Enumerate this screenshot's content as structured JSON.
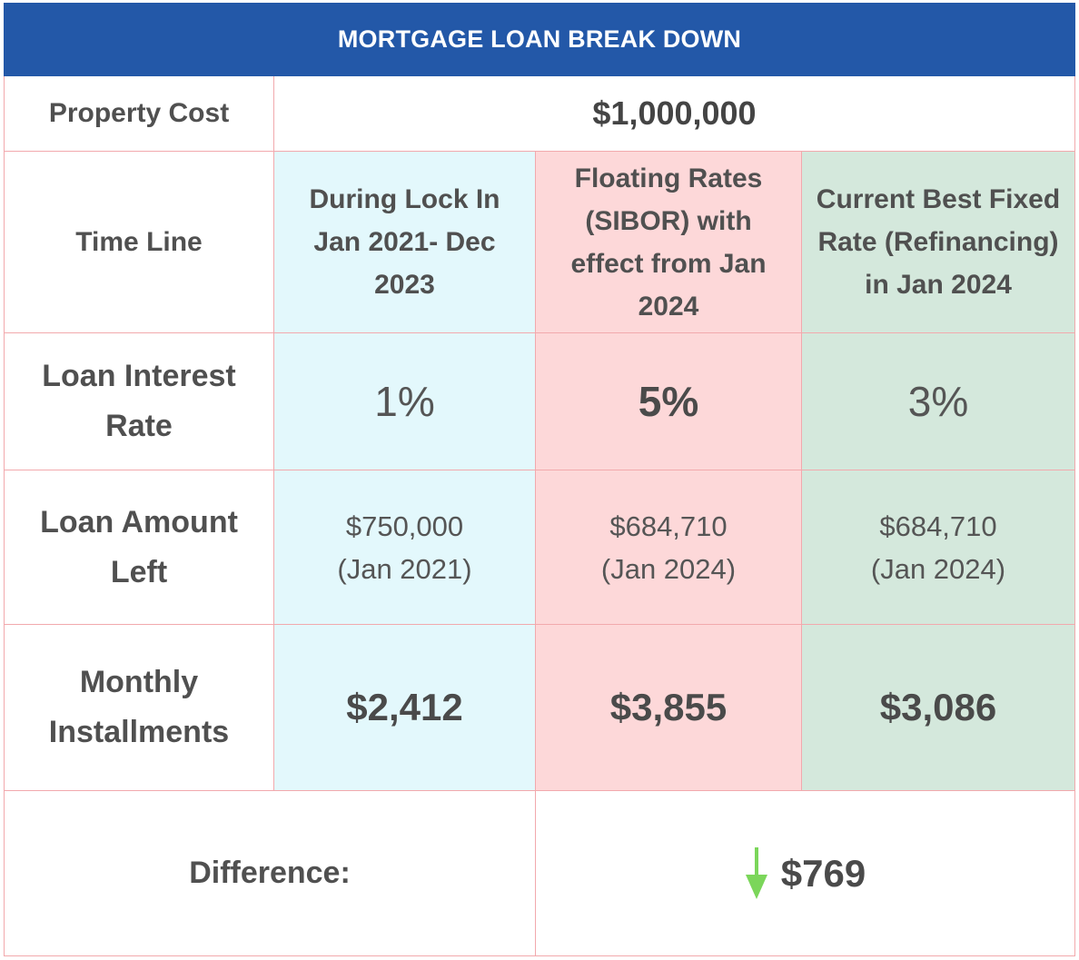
{
  "title": "MORTGAGE LOAN BREAK DOWN",
  "property_cost": {
    "label": "Property Cost",
    "value": "$1,000,000"
  },
  "columns": {
    "row_label": "Time Line",
    "lock_in": "During Lock In Jan 2021- Dec 2023",
    "floating": "Floating Rates (SIBOR) with effect from Jan 2024",
    "fixed": "Current Best Fixed Rate (Refinancing) in Jan 2024"
  },
  "interest_rate": {
    "label": "Loan Interest Rate",
    "lock_in": "1%",
    "floating": "5%",
    "fixed": "3%"
  },
  "loan_amount": {
    "label": "Loan Amount Left",
    "lock_in_amount": "$750,000",
    "lock_in_date": "(Jan 2021)",
    "floating_amount": "$684,710",
    "floating_date": "(Jan 2024)",
    "fixed_amount": "$684,710",
    "fixed_date": "(Jan 2024)"
  },
  "monthly": {
    "label": "Monthly Installments",
    "lock_in": "$2,412",
    "floating": "$3,855",
    "fixed": "$3,086"
  },
  "difference": {
    "label": "Difference:",
    "value": "$769",
    "icon": "arrow-down-icon"
  },
  "colors": {
    "header": "#2358a8",
    "lock_in": "#e3f8fc",
    "floating": "#fdd8d9",
    "fixed": "#d4e8dc",
    "border": "#f2a9ad",
    "arrow": "#7bd65a"
  }
}
